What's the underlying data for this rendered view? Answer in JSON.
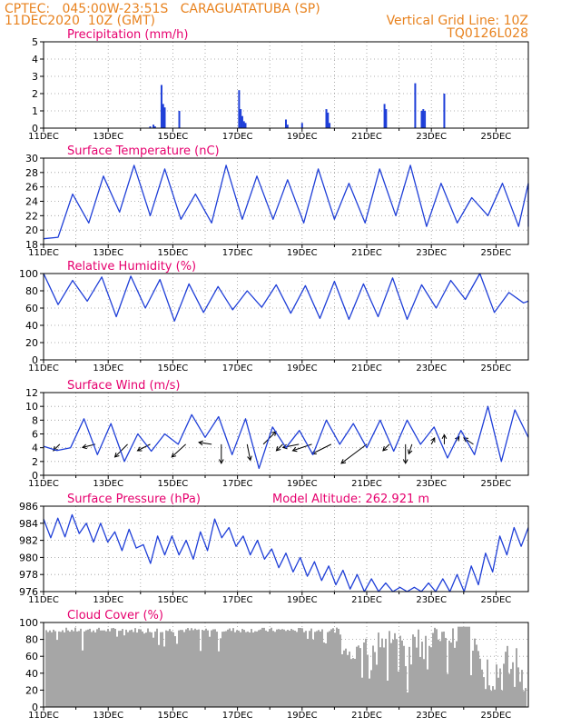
{
  "header": {
    "line1_left": "CPTEC:   045:00W-23:51S   CARAGUATATUBA (SP)",
    "line2_left": "11DEC2020  10Z (GMT)",
    "line2_right": "Vertical Grid Line: 10Z",
    "line3_right": "TQ0126L028"
  },
  "colors": {
    "header": "#e8821e",
    "panel_title": "#e6006e",
    "series_line": "#1f3fd8",
    "cloud_bar": "#a6a6a6",
    "wind_arrow": "#000000"
  },
  "x_ticks": [
    "11DEC",
    "13DEC",
    "15DEC",
    "17DEC",
    "19DEC",
    "21DEC",
    "23DEC",
    "25DEC"
  ],
  "x_tick_sub": "202",
  "chart_data": [
    {
      "type": "bar",
      "id": "precip",
      "title": "Precipitation (mm/h)",
      "ylim": [
        0,
        5
      ],
      "yticks": [
        "0",
        "1",
        "2",
        "3",
        "4",
        "5"
      ],
      "grid": "dotted",
      "values": [
        [
          3.3,
          0.1
        ],
        [
          3.4,
          0.2
        ],
        [
          3.45,
          0.1
        ],
        [
          3.65,
          2.5
        ],
        [
          3.7,
          1.4
        ],
        [
          3.75,
          1.2
        ],
        [
          4.2,
          1.0
        ],
        [
          6.05,
          2.2
        ],
        [
          6.1,
          1.1
        ],
        [
          6.15,
          0.7
        ],
        [
          6.2,
          0.4
        ],
        [
          6.25,
          0.3
        ],
        [
          7.5,
          0.5
        ],
        [
          7.55,
          0.2
        ],
        [
          8.0,
          0.3
        ],
        [
          8.75,
          1.1
        ],
        [
          8.8,
          0.9
        ],
        [
          8.85,
          0.3
        ],
        [
          10.55,
          1.4
        ],
        [
          10.6,
          1.1
        ],
        [
          11.5,
          2.6
        ],
        [
          11.7,
          1.0
        ],
        [
          11.75,
          1.1
        ],
        [
          11.8,
          1.0
        ],
        [
          12.4,
          2.0
        ]
      ]
    },
    {
      "type": "line",
      "id": "temp",
      "title": "Surface Temperature (nC)",
      "ylim": [
        18,
        30
      ],
      "yticks": [
        "18",
        "20",
        "22",
        "24",
        "26",
        "28",
        "30"
      ],
      "grid": "dotted",
      "min": [
        19,
        21,
        22.5,
        22,
        21.5,
        21,
        21.5,
        21.5,
        21,
        21.5,
        21,
        22,
        20.5,
        21,
        22,
        20.5,
        20.5
      ],
      "max": [
        18.8,
        25,
        27.5,
        29,
        28.5,
        25,
        29,
        27.5,
        27,
        28.5,
        26.5,
        28.5,
        29,
        26.5,
        24.5,
        26.5,
        26.5,
        21
      ]
    },
    {
      "type": "line",
      "id": "rh",
      "title": "Relative Humidity (%)",
      "ylim": [
        0,
        100
      ],
      "yticks": [
        "0",
        "20",
        "40",
        "60",
        "80",
        "100"
      ],
      "grid": "dotted",
      "max": [
        100,
        92,
        96,
        97,
        93,
        88,
        85,
        80,
        87,
        86,
        91,
        88,
        95,
        87,
        92,
        100,
        78,
        68
      ],
      "min": [
        64,
        68,
        50,
        60,
        45,
        55,
        58,
        61,
        54,
        48,
        47,
        50,
        47,
        60,
        70,
        55,
        66
      ]
    },
    {
      "type": "line",
      "id": "wind",
      "title": "Surface Wind (m/s)",
      "ylim": [
        0,
        12
      ],
      "yticks": [
        "0",
        "2",
        "4",
        "6",
        "8",
        "10",
        "12"
      ],
      "grid": "dotted",
      "speed": [
        4.2,
        3.6,
        4.0,
        8.2,
        3.0,
        7.5,
        2.0,
        6.0,
        3.5,
        6.0,
        4.5,
        8.8,
        5.5,
        8.5,
        3.0,
        8.2,
        1.0,
        7.0,
        4.0,
        6.5,
        3.0,
        8.0,
        4.5,
        7.5,
        4.0,
        8.0,
        3.5,
        8.0,
        4.5,
        7.0,
        2.5,
        6.5,
        3.0,
        10.0,
        2.0,
        9.5,
        5.5
      ],
      "arrows": [
        {
          "day": 0.5,
          "u": -1,
          "v": -1
        },
        {
          "day": 1.6,
          "u": -2,
          "v": -0.5
        },
        {
          "day": 2.6,
          "u": -2,
          "v": -2
        },
        {
          "day": 3.3,
          "u": -2,
          "v": -1
        },
        {
          "day": 4.4,
          "u": -2.2,
          "v": -2
        },
        {
          "day": 5.2,
          "u": -2,
          "v": 0.3
        },
        {
          "day": 5.5,
          "u": 0,
          "v": -3
        },
        {
          "day": 6.3,
          "u": 0.5,
          "v": -2.5
        },
        {
          "day": 6.8,
          "u": 2,
          "v": 2
        },
        {
          "day": 7.4,
          "u": -1,
          "v": -1
        },
        {
          "day": 7.9,
          "u": -2.5,
          "v": -0.5
        },
        {
          "day": 8.3,
          "u": -3,
          "v": -1
        },
        {
          "day": 8.9,
          "u": -3,
          "v": -1.5
        },
        {
          "day": 10.0,
          "u": -4,
          "v": -3
        },
        {
          "day": 10.7,
          "u": -1,
          "v": -1
        },
        {
          "day": 11.2,
          "u": 0,
          "v": -3
        },
        {
          "day": 11.4,
          "u": -0.5,
          "v": -1.5
        },
        {
          "day": 12.0,
          "u": 0.5,
          "v": 1
        },
        {
          "day": 12.4,
          "u": 0,
          "v": 1.5
        },
        {
          "day": 12.7,
          "u": 0.8,
          "v": 1.2
        },
        {
          "day": 13.3,
          "u": -1.5,
          "v": 1
        }
      ]
    },
    {
      "type": "line",
      "id": "pres",
      "title": "Surface Pressure (hPa)",
      "annotation": "Model Altitude: 262.921 m",
      "ylim": [
        976,
        986
      ],
      "yticks": [
        "976",
        "978",
        "980",
        "982",
        "984",
        "986"
      ],
      "grid": "dotted",
      "peaks": [
        984.5,
        984.6,
        985.0,
        984.0,
        984.0,
        983.0,
        983.3,
        981.5,
        982.5,
        982.5,
        982.0,
        983.0,
        984.5,
        983.5,
        982.5,
        982.0,
        981.0,
        980.5,
        980.0,
        979.5,
        979.0,
        978.5,
        978.0,
        977.5,
        977.0,
        976.5,
        976.5,
        977.0,
        977.5,
        978.0,
        979.0,
        980.5,
        982.5,
        983.5,
        983.5
      ]
    },
    {
      "type": "area",
      "id": "cloud",
      "title": "Cloud Cover (%)",
      "ylim": [
        0,
        100
      ],
      "yticks": [
        "0",
        "20",
        "40",
        "60",
        "80",
        "100"
      ],
      "grid": "dotted"
    }
  ]
}
